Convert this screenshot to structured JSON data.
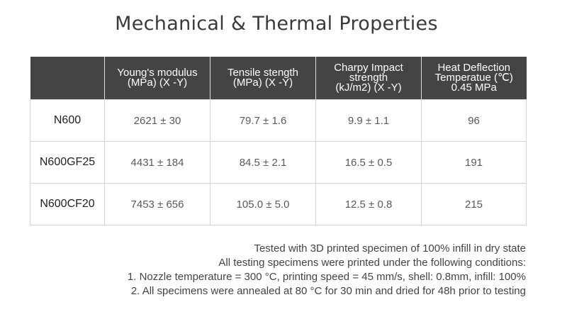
{
  "title": "Mechanical & Thermal Properties",
  "table": {
    "columns": [
      "",
      "Young's modulus\n(MPa) (X -Y)",
      "Tensile stength\n(MPa) (X -Y)",
      "Charpy Impact\nstrength\n(kJ/m2) (X -Y)",
      "Heat Deflection\nTemperatue (℃)\n0.45 MPa"
    ],
    "rows": [
      {
        "name": "N600",
        "cells": [
          "2621 ± 30",
          "79.7 ± 1.6",
          "9.9 ± 1.1",
          "96"
        ]
      },
      {
        "name": "N600GF25",
        "cells": [
          "4431 ± 184",
          "84.5 ± 2.1",
          "16.5 ± 0.5",
          "191"
        ]
      },
      {
        "name": "N600CF20",
        "cells": [
          "7453 ± 656",
          "105.0 ± 5.0",
          "12.5 ± 0.8",
          "215"
        ]
      }
    ]
  },
  "notes": [
    "Tested with 3D printed specimen of 100% infill in dry state",
    "All testing specimens were printed under the following conditions:",
    "1. Nozzle temperature = 300 °C, printing speed = 45 mm/s, shell: 0.8mm, infill: 100%",
    "2. All specimens were annealed at 80 °C for 30 min and dried for 48h prior to testing"
  ],
  "colors": {
    "header_background": "#444444",
    "header_text": "#ffffff",
    "border": "#d4d4d4"
  }
}
